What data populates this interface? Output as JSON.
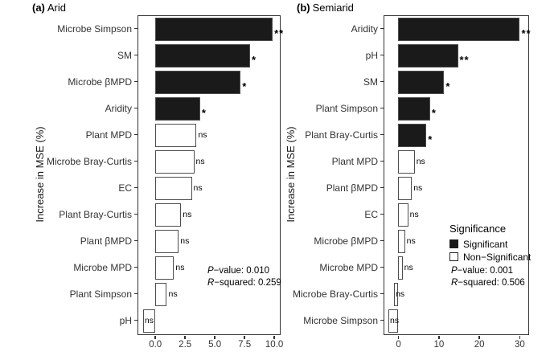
{
  "figure": {
    "background": "#ffffff",
    "colors": {
      "significant_fill": "#1a1a1a",
      "non_significant_fill": "#ffffff",
      "bar_border": "#4d4d4d",
      "panel_border": "#333333",
      "text": "#333333"
    }
  },
  "chart_data": [
    {
      "type": "bar",
      "orientation": "horizontal",
      "panel_tag": "(a)",
      "title": "Arid",
      "ylabel": "Increase in MSE (%)",
      "xlabel": "",
      "xlim": [
        -1.4,
        10.5
      ],
      "grid": false,
      "x_ticks": [
        {
          "label": "0.0",
          "value": 0
        },
        {
          "label": "2.5",
          "value": 2.5
        },
        {
          "label": "5.0",
          "value": 5
        },
        {
          "label": "7.5",
          "value": 7.5
        },
        {
          "label": "10.0",
          "value": 10
        }
      ],
      "categories": [
        "Microbe Simpson",
        "SM",
        "Microbe βMPD",
        "Aridity",
        "Plant MPD",
        "Microbe Bray-Curtis",
        "EC",
        "Plant Bray-Curtis",
        "Plant βMPD",
        "Microbe MPD",
        "Plant Simpson",
        "pH"
      ],
      "values": [
        9.9,
        8.0,
        7.2,
        3.8,
        3.5,
        3.3,
        3.1,
        2.2,
        2.0,
        1.6,
        1.0,
        -1.0
      ],
      "significance": [
        "**",
        "*",
        "*",
        "*",
        "ns",
        "ns",
        "ns",
        "ns",
        "ns",
        "ns",
        "ns",
        "ns"
      ],
      "annotations": {
        "p_italic": "P",
        "p_rest": "−value: 0.010",
        "r_italic": "R",
        "r_rest": "−squared: 0.259"
      }
    },
    {
      "type": "bar",
      "orientation": "horizontal",
      "panel_tag": "(b)",
      "title": "Semiarid",
      "ylabel": "Increase in MSE (%)",
      "xlabel": "",
      "xlim": [
        -3.4,
        32.2
      ],
      "grid": false,
      "x_ticks": [
        {
          "label": "0",
          "value": 0
        },
        {
          "label": "10",
          "value": 10
        },
        {
          "label": "20",
          "value": 20
        },
        {
          "label": "30",
          "value": 30
        }
      ],
      "categories": [
        "Aridity",
        "pH",
        "SM",
        "Plant Simpson",
        "Plant Bray-Curtis",
        "Plant MPD",
        "Plant βMPD",
        "EC",
        "Microbe βMPD",
        "Microbe MPD",
        "Microbe Bray-Curtis",
        "Microbe Simpson"
      ],
      "values": [
        30.1,
        14.8,
        11.4,
        7.9,
        7.0,
        4.1,
        3.4,
        2.5,
        1.7,
        1.1,
        -1.0,
        -2.4
      ],
      "significance": [
        "**",
        "**",
        "*",
        "*",
        "*",
        "ns",
        "ns",
        "ns",
        "ns",
        "ns",
        "ns",
        "ns"
      ],
      "legend": {
        "title": "Significance",
        "items": [
          {
            "label": "Significant",
            "fill": "#1a1a1a"
          },
          {
            "label": "Non−Significant",
            "fill": "#ffffff"
          }
        ]
      },
      "annotations": {
        "p_italic": "P",
        "p_rest": "−value: 0.001",
        "r_italic": "R",
        "r_rest": "−squared: 0.506"
      }
    }
  ]
}
